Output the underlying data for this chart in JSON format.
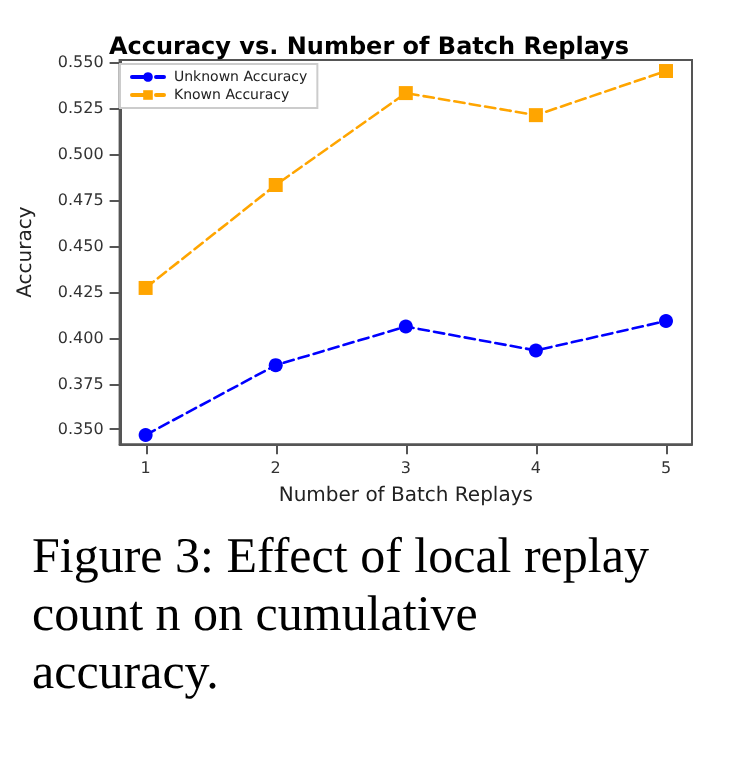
{
  "chart_data": {
    "type": "line",
    "title": "Accuracy vs. Number of Batch Replays",
    "xlabel": "Number of Batch Replays",
    "ylabel": "Accuracy",
    "x": [
      1,
      2,
      3,
      4,
      5
    ],
    "series": [
      {
        "name": "Unknown Accuracy",
        "color": "#0000ff",
        "marker": "circle",
        "values": [
          0.347,
          0.385,
          0.406,
          0.393,
          0.409
        ]
      },
      {
        "name": "Known Accuracy",
        "color": "#ffa500",
        "marker": "square",
        "values": [
          0.427,
          0.483,
          0.533,
          0.521,
          0.545
        ]
      }
    ],
    "xlim": [
      0.8,
      5.2
    ],
    "xticks": [
      1,
      2,
      3,
      4,
      5
    ],
    "ylim": [
      0.342,
      0.551
    ],
    "yticks": [
      {
        "value": 0.35,
        "label": "0.350"
      },
      {
        "value": 0.375,
        "label": "0.375"
      },
      {
        "value": 0.4,
        "label": "0.400"
      },
      {
        "value": 0.425,
        "label": "0.425"
      },
      {
        "value": 0.45,
        "label": "0.450"
      },
      {
        "value": 0.475,
        "label": "0.475"
      },
      {
        "value": 0.5,
        "label": "0.500"
      },
      {
        "value": 0.525,
        "label": "0.525"
      },
      {
        "value": 0.55,
        "label": "0.550"
      }
    ],
    "line_style": "dashed",
    "grid": false,
    "legend": "top left",
    "annotations": [
      "Figure 3: Effect of local replay count n on cumulative accuracy."
    ]
  }
}
